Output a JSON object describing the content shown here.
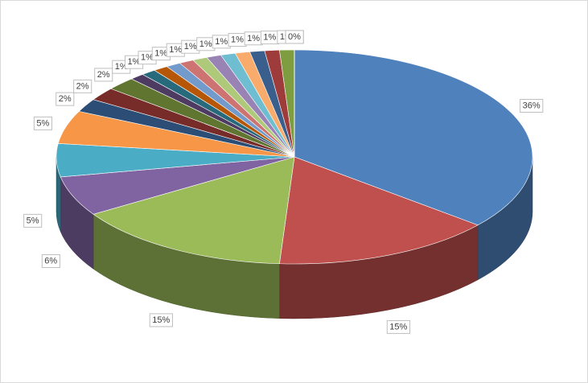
{
  "chart_data": {
    "type": "pie",
    "values": [
      36,
      15,
      15,
      6,
      5,
      5,
      2,
      2,
      2,
      1,
      1,
      1,
      1,
      1,
      1,
      1,
      1,
      1,
      1,
      1,
      1,
      0,
      0,
      0
    ],
    "value_labels": [
      "36%",
      "15%",
      "15%",
      "6%",
      "5%",
      "5%",
      "2%",
      "2%",
      "2%",
      "1%",
      "1%",
      "1%",
      "1%",
      "1%",
      "1%",
      "1%",
      "1%",
      "1%",
      "1%",
      "1%",
      "1%",
      "0%",
      "0%",
      "0%"
    ],
    "colors": [
      "#4f81bd",
      "#c0504d",
      "#9bbb59",
      "#8064a2",
      "#4bacc6",
      "#f79646",
      "#2c4d75",
      "#772c2a",
      "#5f7530",
      "#4d3b62",
      "#276a7c",
      "#b65708",
      "#729aca",
      "#cd7371",
      "#afc97a",
      "#9983b5",
      "#6fbdd1",
      "#f9ab6b",
      "#3a5f8d",
      "#9d3c3a",
      "#7e9c40",
      "#664f83",
      "#3390a7",
      "#d8813a"
    ]
  }
}
